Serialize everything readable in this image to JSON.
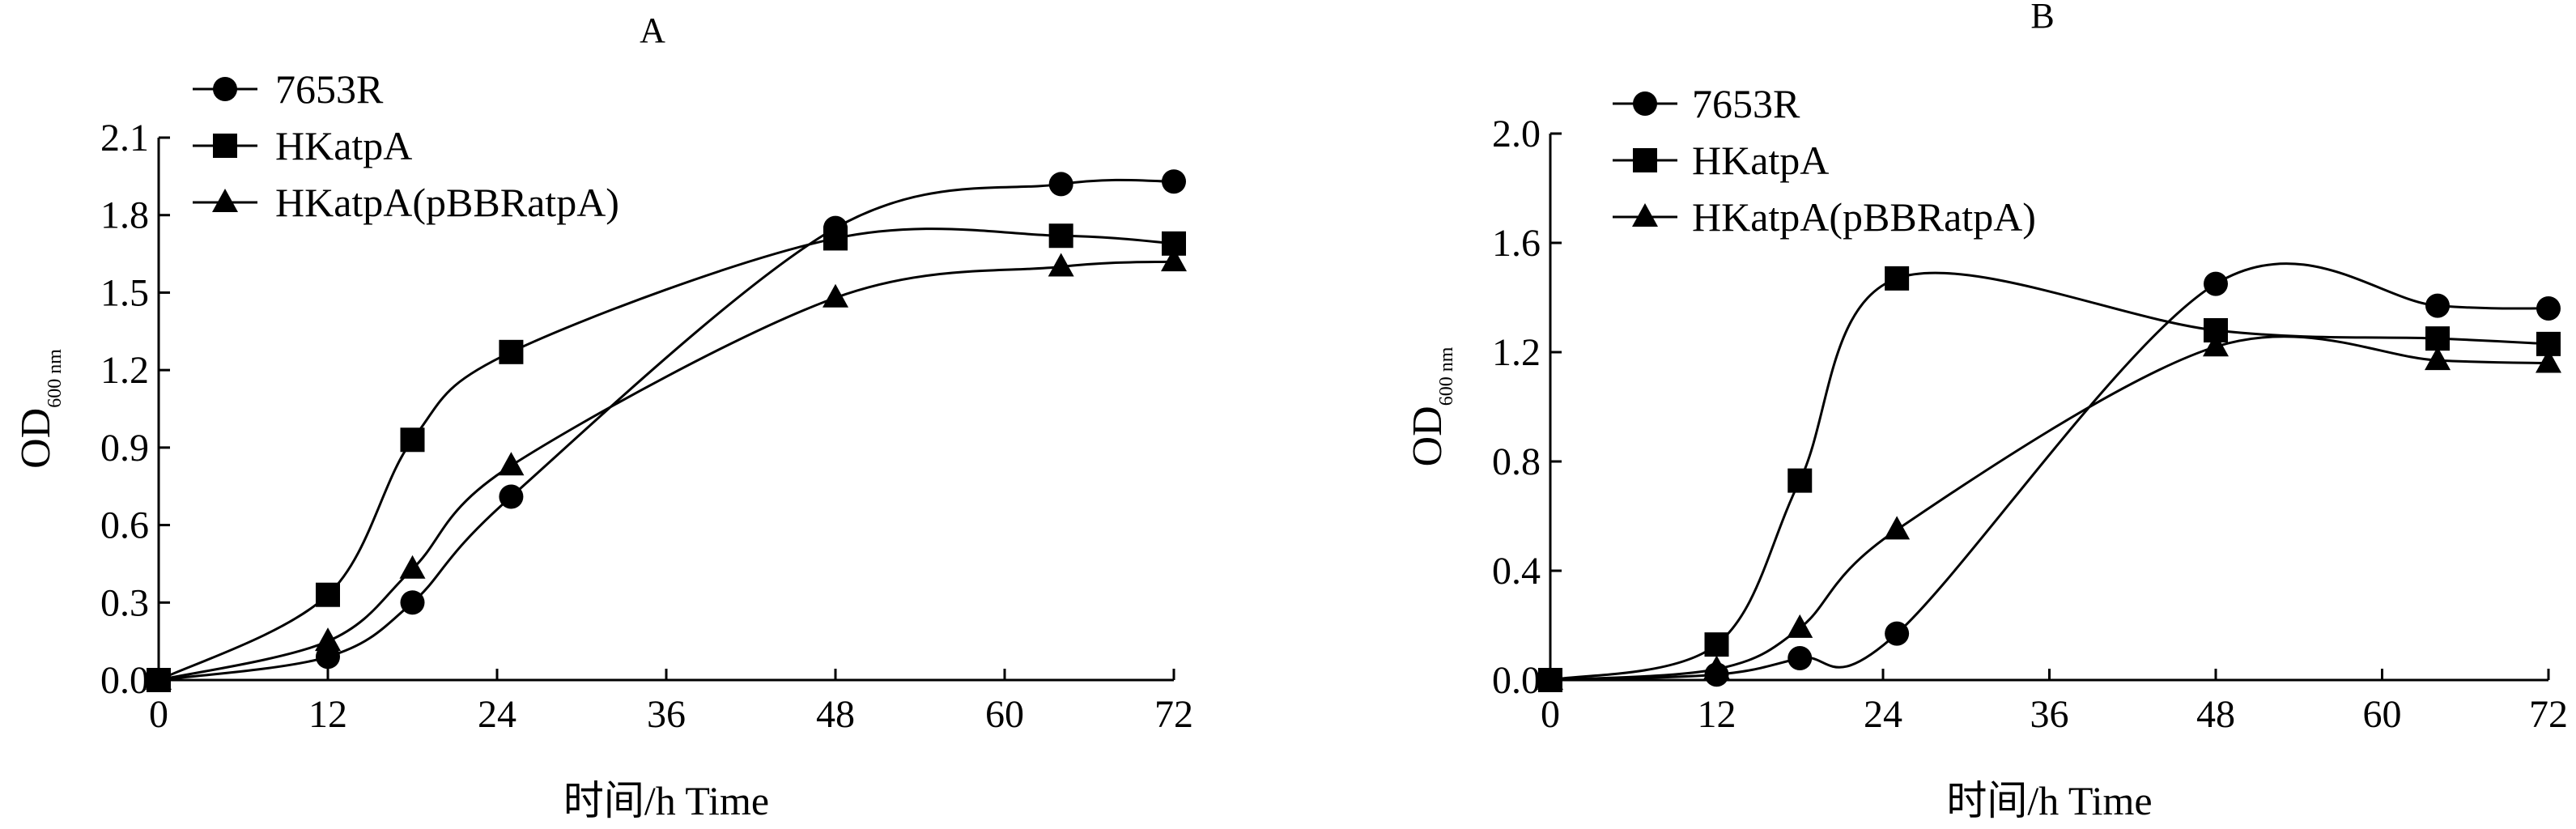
{
  "chart_data": [
    {
      "panel_label": "A",
      "type": "line",
      "xlabel": "时间/h  Time",
      "ylabel": {
        "main": "OD",
        "sub": "600 nm"
      },
      "x_ticks": [
        0,
        12,
        24,
        36,
        48,
        60,
        72
      ],
      "y_ticks": [
        "0.0",
        "0.3",
        "0.6",
        "0.9",
        "1.2",
        "1.5",
        "1.8",
        "2.1"
      ],
      "xlim": [
        0,
        72
      ],
      "ylim": [
        0,
        2.1
      ],
      "legend_position": "top-left",
      "series": [
        {
          "name": "7653R",
          "marker": "circle",
          "x": [
            0,
            12,
            18,
            25,
            48,
            64,
            72
          ],
          "y": [
            0.0,
            0.09,
            0.3,
            0.71,
            1.75,
            1.92,
            1.93
          ]
        },
        {
          "name": "HKatpA",
          "marker": "square",
          "x": [
            0,
            12,
            18,
            25,
            48,
            64,
            72
          ],
          "y": [
            0.0,
            0.33,
            0.93,
            1.27,
            1.71,
            1.72,
            1.69
          ]
        },
        {
          "name": "HKatpA(pBBRatpA)",
          "marker": "triangle",
          "x": [
            0,
            12,
            18,
            25,
            48,
            64,
            72
          ],
          "y": [
            0.0,
            0.15,
            0.43,
            0.83,
            1.48,
            1.6,
            1.62
          ]
        }
      ]
    },
    {
      "panel_label": "B",
      "type": "line",
      "xlabel": "时间/h  Time",
      "ylabel": {
        "main": "OD",
        "sub": "600 nm"
      },
      "x_ticks": [
        0,
        12,
        24,
        36,
        48,
        60,
        72
      ],
      "y_ticks": [
        "0.0",
        "0.4",
        "0.8",
        "1.2",
        "1.6",
        "2.0"
      ],
      "xlim": [
        0,
        72
      ],
      "ylim": [
        0,
        2.0
      ],
      "legend_position": "top-left",
      "series": [
        {
          "name": "7653R",
          "marker": "circle",
          "x": [
            0,
            12,
            18,
            25,
            48,
            64,
            72
          ],
          "y": [
            0.0,
            0.02,
            0.08,
            0.17,
            1.45,
            1.37,
            1.36
          ]
        },
        {
          "name": "HKatpA",
          "marker": "square",
          "x": [
            0,
            12,
            18,
            25,
            48,
            64,
            72
          ],
          "y": [
            0.0,
            0.13,
            0.73,
            1.47,
            1.28,
            1.25,
            1.23
          ]
        },
        {
          "name": "HKatpA(pBBRatpA)",
          "marker": "triangle",
          "x": [
            0,
            12,
            18,
            25,
            48,
            64,
            72
          ],
          "y": [
            0.0,
            0.04,
            0.19,
            0.55,
            1.22,
            1.17,
            1.16
          ]
        }
      ]
    }
  ]
}
